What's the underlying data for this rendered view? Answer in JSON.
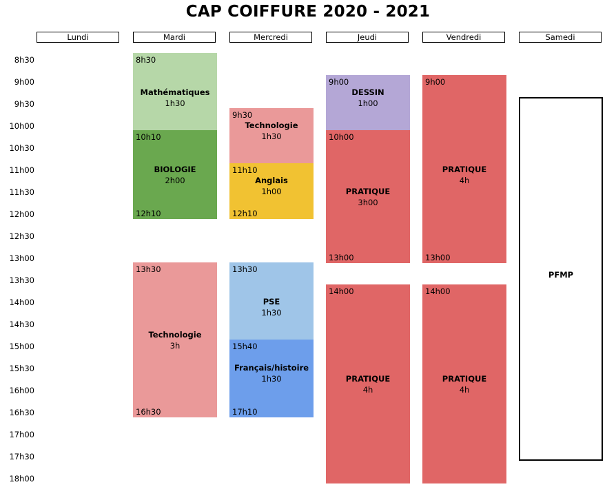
{
  "title": "CAP COIFFURE 2020 - 2021",
  "days": [
    "Lundi",
    "Mardi",
    "Mercredi",
    "Jeudi",
    "Vendredi",
    "Samedi"
  ],
  "times": [
    "8h30",
    "9h00",
    "9h30",
    "10h00",
    "10h30",
    "11h00",
    "11h30",
    "12h00",
    "12h30",
    "13h00",
    "13h30",
    "14h00",
    "14h30",
    "15h00",
    "15h30",
    "16h00",
    "16h30",
    "17h00",
    "17h30",
    "18h00"
  ],
  "colors": {
    "math": "#b6d7a8",
    "biologie": "#6aa84f",
    "technologie": "#ea9999",
    "anglais": "#f1c232",
    "pse": "#9fc5e8",
    "francais": "#6d9eeb",
    "dessin": "#b4a7d6",
    "pratique": "#e06666"
  },
  "mardi": {
    "math": {
      "start": "8h30",
      "label": "Mathématiques",
      "duration": "1h30"
    },
    "biologie": {
      "start": "10h10",
      "label": "BIOLOGIE",
      "duration": "2h00",
      "end": "12h10"
    },
    "technologie": {
      "start": "13h30",
      "label": "Technologie",
      "duration": "3h",
      "end": "16h30"
    }
  },
  "mercredi": {
    "technologie": {
      "start": "9h30",
      "label": "Technologie",
      "duration": "1h30"
    },
    "anglais": {
      "start": "11h10",
      "label": "Anglais",
      "duration": "1h00",
      "end": "12h10"
    },
    "pse": {
      "start": "13h30",
      "label": "PSE",
      "duration": "1h30"
    },
    "francais": {
      "start": "15h40",
      "label": "Français/histoire",
      "duration": "1h30",
      "end": "17h10"
    }
  },
  "jeudi": {
    "dessin": {
      "start": "9h00",
      "label": "DESSIN",
      "duration": "1h00"
    },
    "pratique_am": {
      "start": "10h00",
      "label": "PRATIQUE",
      "duration": "3h00",
      "end": "13h00"
    },
    "pratique_pm": {
      "start": "14h00",
      "label": "PRATIQUE",
      "duration": "4h"
    }
  },
  "vendredi": {
    "pratique_am": {
      "start": "9h00",
      "label": "PRATIQUE",
      "duration": "4h",
      "end": "13h00"
    },
    "pratique_pm": {
      "start": "14h00",
      "label": "PRATIQUE",
      "duration": "4h"
    }
  },
  "samedi": {
    "pfmp": {
      "label": "PFMP"
    }
  }
}
